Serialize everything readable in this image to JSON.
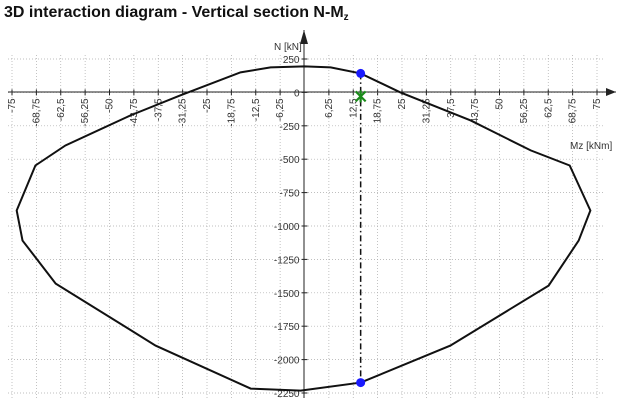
{
  "chart_data": {
    "type": "line",
    "title": "3D interaction diagram - Vertical section N-M",
    "title_subscript": "z",
    "x_label": "Mz [kNm]",
    "y_label": "N [kN]",
    "xlim": [
      -75,
      75
    ],
    "ylim": [
      -2250,
      250
    ],
    "grid": true,
    "xticks": [
      {
        "value": -75,
        "label": "-75"
      },
      {
        "value": -68.75,
        "label": "-68,75"
      },
      {
        "value": -62.5,
        "label": "-62,5"
      },
      {
        "value": -56.25,
        "label": "-56,25"
      },
      {
        "value": -50,
        "label": "-50"
      },
      {
        "value": -43.75,
        "label": "-43,75"
      },
      {
        "value": -37.5,
        "label": "-37,5"
      },
      {
        "value": -31.25,
        "label": "-31,25"
      },
      {
        "value": -25,
        "label": "-25"
      },
      {
        "value": -18.75,
        "label": "-18,75"
      },
      {
        "value": -12.5,
        "label": "-12,5"
      },
      {
        "value": -6.25,
        "label": "-6,25"
      },
      {
        "value": 6.25,
        "label": "6,25"
      },
      {
        "value": 12.5,
        "label": "12,5"
      },
      {
        "value": 18.75,
        "label": "18,75"
      },
      {
        "value": 25,
        "label": "25"
      },
      {
        "value": 31.25,
        "label": "31,25"
      },
      {
        "value": 37.5,
        "label": "37,5"
      },
      {
        "value": 43.75,
        "label": "43,75"
      },
      {
        "value": 50,
        "label": "50"
      },
      {
        "value": 56.25,
        "label": "56,25"
      },
      {
        "value": 62.5,
        "label": "62,5"
      },
      {
        "value": 68.75,
        "label": "68,75"
      },
      {
        "value": 75,
        "label": "75"
      }
    ],
    "yticks": [
      250,
      0,
      -250,
      -500,
      -750,
      -1000,
      -1250,
      -1500,
      -1750,
      -2000,
      -2250
    ],
    "series": [
      {
        "color": "#111111",
        "x": [
          0,
          6.7,
          14.4,
          24.6,
          42.6,
          58,
          68,
          73.3,
          70.3,
          62.6,
          37.4,
          14.4,
          -1,
          -13.8,
          -38.2,
          -63.8,
          -72.3,
          -73.8,
          -69,
          -61.3,
          -44.6,
          -31.8,
          -16.4,
          -8.7
        ],
        "values": [
          195,
          187,
          142,
          0,
          -210,
          -434,
          -547,
          -884,
          -1109,
          -1446,
          -1895,
          -2172,
          -2232,
          -2217,
          -1895,
          -1431,
          -1109,
          -884,
          -547,
          -397,
          -172,
          -22,
          150,
          187
        ]
      },
      {
        "color": "#1a1aff",
        "x": [
          14.4,
          14.4
        ],
        "values": [
          142,
          -2172
        ]
      },
      {
        "color": "#1a8a1a",
        "x": [
          14.4
        ],
        "values": [
          -30
        ]
      }
    ]
  }
}
